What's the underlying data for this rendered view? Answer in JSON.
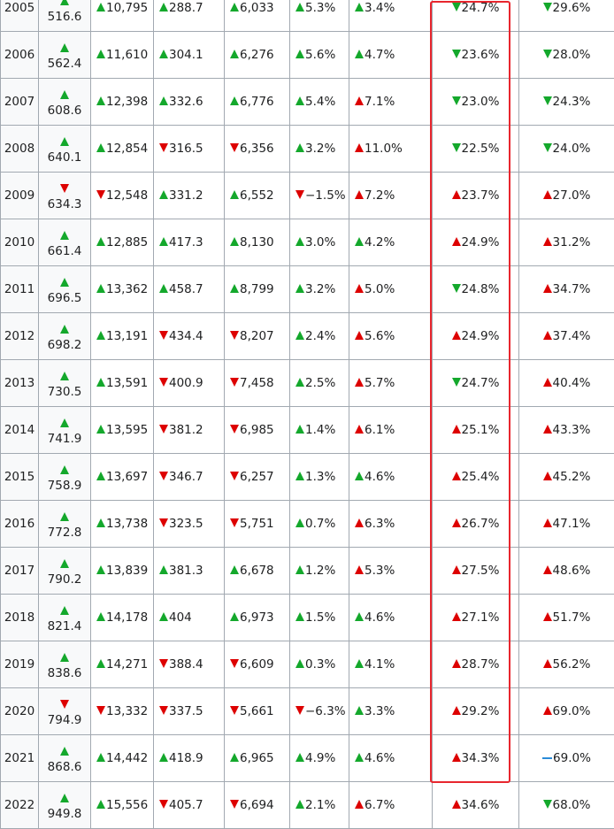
{
  "colors": {
    "up_green": "#14a82c",
    "down_red": "#dd0000",
    "flat_blue": "#2a8bd8",
    "highlight_border": "#e8262e",
    "grid_border": "#a2a9b1",
    "header_cell_bg": "#f8f9fa"
  },
  "rows": [
    {
      "year": "2005",
      "gdp": {
        "dir": "up",
        "color": "green",
        "value": "516.6"
      },
      "cells": [
        {
          "dir": "up",
          "color": "green",
          "text": "10,795"
        },
        {
          "dir": "up",
          "color": "green",
          "text": "288.7"
        },
        {
          "dir": "up",
          "color": "green",
          "text": "6,033"
        },
        {
          "dir": "up",
          "color": "green",
          "text": "5.3%"
        },
        {
          "dir": "up",
          "color": "green",
          "text": "3.4%"
        },
        {
          "dir": "down",
          "color": "green",
          "text": "24.7%"
        },
        {
          "dir": "down",
          "color": "green",
          "text": "29.6%"
        }
      ]
    },
    {
      "year": "2006",
      "gdp": {
        "dir": "up",
        "color": "green",
        "value": "562.4"
      },
      "cells": [
        {
          "dir": "up",
          "color": "green",
          "text": "11,610"
        },
        {
          "dir": "up",
          "color": "green",
          "text": "304.1"
        },
        {
          "dir": "up",
          "color": "green",
          "text": "6,276"
        },
        {
          "dir": "up",
          "color": "green",
          "text": "5.6%"
        },
        {
          "dir": "up",
          "color": "green",
          "text": "4.7%"
        },
        {
          "dir": "down",
          "color": "green",
          "text": "23.6%"
        },
        {
          "dir": "down",
          "color": "green",
          "text": "28.0%"
        }
      ]
    },
    {
      "year": "2007",
      "gdp": {
        "dir": "up",
        "color": "green",
        "value": "608.6"
      },
      "cells": [
        {
          "dir": "up",
          "color": "green",
          "text": "12,398"
        },
        {
          "dir": "up",
          "color": "green",
          "text": "332.6"
        },
        {
          "dir": "up",
          "color": "green",
          "text": "6,776"
        },
        {
          "dir": "up",
          "color": "green",
          "text": "5.4%"
        },
        {
          "dir": "up",
          "color": "red",
          "text": "7.1%"
        },
        {
          "dir": "down",
          "color": "green",
          "text": "23.0%"
        },
        {
          "dir": "down",
          "color": "green",
          "text": "24.3%"
        }
      ]
    },
    {
      "year": "2008",
      "gdp": {
        "dir": "up",
        "color": "green",
        "value": "640.1"
      },
      "cells": [
        {
          "dir": "up",
          "color": "green",
          "text": "12,854"
        },
        {
          "dir": "down",
          "color": "red",
          "text": "316.5"
        },
        {
          "dir": "down",
          "color": "red",
          "text": "6,356"
        },
        {
          "dir": "up",
          "color": "green",
          "text": "3.2%"
        },
        {
          "dir": "up",
          "color": "red",
          "text": "11.0%"
        },
        {
          "dir": "down",
          "color": "green",
          "text": "22.5%"
        },
        {
          "dir": "down",
          "color": "green",
          "text": "24.0%"
        }
      ]
    },
    {
      "year": "2009",
      "gdp": {
        "dir": "down",
        "color": "red",
        "value": "634.3"
      },
      "cells": [
        {
          "dir": "down",
          "color": "red",
          "text": "12,548"
        },
        {
          "dir": "up",
          "color": "green",
          "text": "331.2"
        },
        {
          "dir": "up",
          "color": "green",
          "text": "6,552"
        },
        {
          "dir": "down",
          "color": "red",
          "text": "−1.5%"
        },
        {
          "dir": "up",
          "color": "red",
          "text": "7.2%"
        },
        {
          "dir": "up",
          "color": "red",
          "text": "23.7%"
        },
        {
          "dir": "up",
          "color": "red",
          "text": "27.0%"
        }
      ]
    },
    {
      "year": "2010",
      "gdp": {
        "dir": "up",
        "color": "green",
        "value": "661.4"
      },
      "cells": [
        {
          "dir": "up",
          "color": "green",
          "text": "12,885"
        },
        {
          "dir": "up",
          "color": "green",
          "text": "417.3"
        },
        {
          "dir": "up",
          "color": "green",
          "text": "8,130"
        },
        {
          "dir": "up",
          "color": "green",
          "text": "3.0%"
        },
        {
          "dir": "up",
          "color": "green",
          "text": "4.2%"
        },
        {
          "dir": "up",
          "color": "red",
          "text": "24.9%"
        },
        {
          "dir": "up",
          "color": "red",
          "text": "31.2%"
        }
      ]
    },
    {
      "year": "2011",
      "gdp": {
        "dir": "up",
        "color": "green",
        "value": "696.5"
      },
      "cells": [
        {
          "dir": "up",
          "color": "green",
          "text": "13,362"
        },
        {
          "dir": "up",
          "color": "green",
          "text": "458.7"
        },
        {
          "dir": "up",
          "color": "green",
          "text": "8,799"
        },
        {
          "dir": "up",
          "color": "green",
          "text": "3.2%"
        },
        {
          "dir": "up",
          "color": "red",
          "text": "5.0%"
        },
        {
          "dir": "down",
          "color": "green",
          "text": "24.8%"
        },
        {
          "dir": "up",
          "color": "red",
          "text": "34.7%"
        }
      ]
    },
    {
      "year": "2012",
      "gdp": {
        "dir": "up",
        "color": "green",
        "value": "698.2"
      },
      "cells": [
        {
          "dir": "up",
          "color": "green",
          "text": "13,191"
        },
        {
          "dir": "down",
          "color": "red",
          "text": "434.4"
        },
        {
          "dir": "down",
          "color": "red",
          "text": "8,207"
        },
        {
          "dir": "up",
          "color": "green",
          "text": "2.4%"
        },
        {
          "dir": "up",
          "color": "red",
          "text": "5.6%"
        },
        {
          "dir": "up",
          "color": "red",
          "text": "24.9%"
        },
        {
          "dir": "up",
          "color": "red",
          "text": "37.4%"
        }
      ]
    },
    {
      "year": "2013",
      "gdp": {
        "dir": "up",
        "color": "green",
        "value": "730.5"
      },
      "cells": [
        {
          "dir": "up",
          "color": "green",
          "text": "13,591"
        },
        {
          "dir": "down",
          "color": "red",
          "text": "400.9"
        },
        {
          "dir": "down",
          "color": "red",
          "text": "7,458"
        },
        {
          "dir": "up",
          "color": "green",
          "text": "2.5%"
        },
        {
          "dir": "up",
          "color": "red",
          "text": "5.7%"
        },
        {
          "dir": "down",
          "color": "green",
          "text": "24.7%"
        },
        {
          "dir": "up",
          "color": "red",
          "text": "40.4%"
        }
      ]
    },
    {
      "year": "2014",
      "gdp": {
        "dir": "up",
        "color": "green",
        "value": "741.9"
      },
      "cells": [
        {
          "dir": "up",
          "color": "green",
          "text": "13,595"
        },
        {
          "dir": "down",
          "color": "red",
          "text": "381.2"
        },
        {
          "dir": "down",
          "color": "red",
          "text": "6,985"
        },
        {
          "dir": "up",
          "color": "green",
          "text": "1.4%"
        },
        {
          "dir": "up",
          "color": "red",
          "text": "6.1%"
        },
        {
          "dir": "up",
          "color": "red",
          "text": "25.1%"
        },
        {
          "dir": "up",
          "color": "red",
          "text": "43.3%"
        }
      ]
    },
    {
      "year": "2015",
      "gdp": {
        "dir": "up",
        "color": "green",
        "value": "758.9"
      },
      "cells": [
        {
          "dir": "up",
          "color": "green",
          "text": "13,697"
        },
        {
          "dir": "down",
          "color": "red",
          "text": "346.7"
        },
        {
          "dir": "down",
          "color": "red",
          "text": "6,257"
        },
        {
          "dir": "up",
          "color": "green",
          "text": "1.3%"
        },
        {
          "dir": "up",
          "color": "green",
          "text": "4.6%"
        },
        {
          "dir": "up",
          "color": "red",
          "text": "25.4%"
        },
        {
          "dir": "up",
          "color": "red",
          "text": "45.2%"
        }
      ]
    },
    {
      "year": "2016",
      "gdp": {
        "dir": "up",
        "color": "green",
        "value": "772.8"
      },
      "cells": [
        {
          "dir": "up",
          "color": "green",
          "text": "13,738"
        },
        {
          "dir": "down",
          "color": "red",
          "text": "323.5"
        },
        {
          "dir": "down",
          "color": "red",
          "text": "5,751"
        },
        {
          "dir": "up",
          "color": "green",
          "text": "0.7%"
        },
        {
          "dir": "up",
          "color": "red",
          "text": "6.3%"
        },
        {
          "dir": "up",
          "color": "red",
          "text": "26.7%"
        },
        {
          "dir": "up",
          "color": "red",
          "text": "47.1%"
        }
      ]
    },
    {
      "year": "2017",
      "gdp": {
        "dir": "up",
        "color": "green",
        "value": "790.2"
      },
      "cells": [
        {
          "dir": "up",
          "color": "green",
          "text": "13,839"
        },
        {
          "dir": "up",
          "color": "green",
          "text": "381.3"
        },
        {
          "dir": "up",
          "color": "green",
          "text": "6,678"
        },
        {
          "dir": "up",
          "color": "green",
          "text": "1.2%"
        },
        {
          "dir": "up",
          "color": "red",
          "text": "5.3%"
        },
        {
          "dir": "up",
          "color": "red",
          "text": "27.5%"
        },
        {
          "dir": "up",
          "color": "red",
          "text": "48.6%"
        }
      ]
    },
    {
      "year": "2018",
      "gdp": {
        "dir": "up",
        "color": "green",
        "value": "821.4"
      },
      "cells": [
        {
          "dir": "up",
          "color": "green",
          "text": "14,178"
        },
        {
          "dir": "up",
          "color": "green",
          "text": "404"
        },
        {
          "dir": "up",
          "color": "green",
          "text": "6,973"
        },
        {
          "dir": "up",
          "color": "green",
          "text": "1.5%"
        },
        {
          "dir": "up",
          "color": "green",
          "text": "4.6%"
        },
        {
          "dir": "up",
          "color": "red",
          "text": "27.1%"
        },
        {
          "dir": "up",
          "color": "red",
          "text": "51.7%"
        }
      ]
    },
    {
      "year": "2019",
      "gdp": {
        "dir": "up",
        "color": "green",
        "value": "838.6"
      },
      "cells": [
        {
          "dir": "up",
          "color": "green",
          "text": "14,271"
        },
        {
          "dir": "down",
          "color": "red",
          "text": "388.4"
        },
        {
          "dir": "down",
          "color": "red",
          "text": "6,609"
        },
        {
          "dir": "up",
          "color": "green",
          "text": "0.3%"
        },
        {
          "dir": "up",
          "color": "green",
          "text": "4.1%"
        },
        {
          "dir": "up",
          "color": "red",
          "text": "28.7%"
        },
        {
          "dir": "up",
          "color": "red",
          "text": "56.2%"
        }
      ]
    },
    {
      "year": "2020",
      "gdp": {
        "dir": "down",
        "color": "red",
        "value": "794.9"
      },
      "cells": [
        {
          "dir": "down",
          "color": "red",
          "text": "13,332"
        },
        {
          "dir": "down",
          "color": "red",
          "text": "337.5"
        },
        {
          "dir": "down",
          "color": "red",
          "text": "5,661"
        },
        {
          "dir": "down",
          "color": "red",
          "text": "−6.3%"
        },
        {
          "dir": "up",
          "color": "green",
          "text": "3.3%"
        },
        {
          "dir": "up",
          "color": "red",
          "text": "29.2%"
        },
        {
          "dir": "up",
          "color": "red",
          "text": "69.0%"
        }
      ]
    },
    {
      "year": "2021",
      "gdp": {
        "dir": "up",
        "color": "green",
        "value": "868.6"
      },
      "cells": [
        {
          "dir": "up",
          "color": "green",
          "text": "14,442"
        },
        {
          "dir": "up",
          "color": "green",
          "text": "418.9"
        },
        {
          "dir": "up",
          "color": "green",
          "text": "6,965"
        },
        {
          "dir": "up",
          "color": "green",
          "text": "4.9%"
        },
        {
          "dir": "up",
          "color": "green",
          "text": "4.6%"
        },
        {
          "dir": "up",
          "color": "red",
          "text": "34.3%"
        },
        {
          "dir": "flat",
          "color": "blue",
          "text": "69.0%"
        }
      ]
    },
    {
      "year": "2022",
      "gdp": {
        "dir": "up",
        "color": "green",
        "value": "949.8"
      },
      "cells": [
        {
          "dir": "up",
          "color": "green",
          "text": "15,556"
        },
        {
          "dir": "down",
          "color": "red",
          "text": "405.7"
        },
        {
          "dir": "down",
          "color": "red",
          "text": "6,694"
        },
        {
          "dir": "up",
          "color": "green",
          "text": "2.1%"
        },
        {
          "dir": "up",
          "color": "red",
          "text": "6.7%"
        },
        {
          "dir": "up",
          "color": "red",
          "text": "34.6%"
        },
        {
          "dir": "down",
          "color": "green",
          "text": "68.0%"
        }
      ]
    }
  ]
}
